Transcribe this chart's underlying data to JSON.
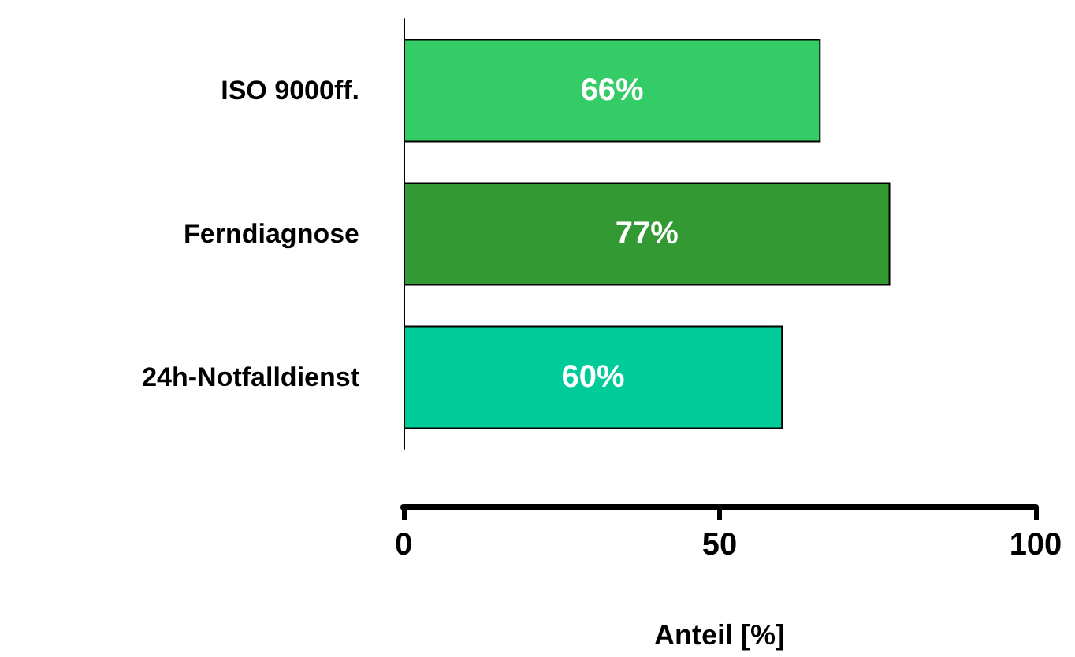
{
  "chart_data": {
    "type": "bar",
    "orientation": "horizontal",
    "categories": [
      "ISO 9000ff.",
      "Ferndiagnose",
      "24h-Notfalldienst"
    ],
    "values": [
      66,
      77,
      60
    ],
    "colors": [
      "#33cc66",
      "#339933",
      "#00cc99"
    ],
    "value_labels": [
      "66%",
      "77%",
      "60%"
    ],
    "xlabel": "Anteil [%]",
    "xlim": [
      0,
      100
    ],
    "xticks": [
      0,
      50,
      100
    ]
  }
}
